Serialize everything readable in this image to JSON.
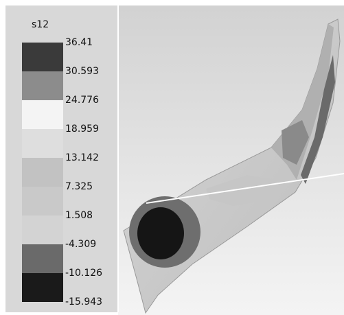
{
  "legend": {
    "title": "s12",
    "labels": [
      "36.41",
      "30.593",
      "24.776",
      "18.959",
      "13.142",
      "7.325",
      "1.508",
      "-4.309",
      "-10.126",
      "-15.943"
    ]
  }
}
